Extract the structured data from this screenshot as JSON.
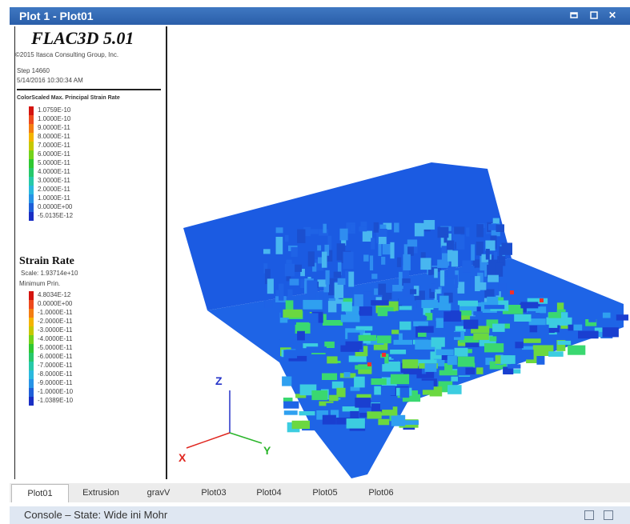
{
  "window": {
    "title": "Plot 1 - Plot01",
    "icons": [
      "restore-icon",
      "maximize-icon",
      "close-icon"
    ],
    "close_glyph": "✕"
  },
  "legend": {
    "brand": "FLAC3D 5.01",
    "copyright": "©2015 Itasca Consulting Group, Inc.",
    "step": "Step 14660",
    "datetime": "5/14/2016 10:30:34 AM",
    "max_header": "ColorScaled Max. Principal Strain Rate",
    "max_entries": [
      "1.0759E-10",
      "1.0000E-10",
      "9.0000E-11",
      "8.0000E-11",
      "7.0000E-11",
      "6.0000E-11",
      "5.0000E-11",
      "4.0000E-11",
      "3.0000E-11",
      "2.0000E-11",
      "1.0000E-11",
      "0.0000E+00",
      "-5.0135E-12"
    ],
    "max_colors": [
      "#d4140f",
      "#ee4a1d",
      "#f47d12",
      "#f4b400",
      "#c6c800",
      "#73d21b",
      "#2fc832",
      "#26c86b",
      "#27c9a8",
      "#2ab8de",
      "#2693e6",
      "#1f5fd8",
      "#1a2fc4"
    ],
    "strain_title": "Strain Rate",
    "scale": "Scale: 1.93714e+10",
    "min_header": "Minimum Prin.",
    "min_entries": [
      "4.8034E-12",
      "0.0000E+00",
      "-1.0000E-11",
      "-2.0000E-11",
      "-3.0000E-11",
      "-4.0000E-11",
      "-5.0000E-11",
      "-6.0000E-11",
      "-7.0000E-11",
      "-8.0000E-11",
      "-9.0000E-11",
      "-1.0000E-10",
      "-1.0389E-10"
    ],
    "min_colors": [
      "#d4140f",
      "#ee4a1d",
      "#f47d12",
      "#f4b400",
      "#c6c800",
      "#73d21b",
      "#2fc832",
      "#26c86b",
      "#27c9a8",
      "#2ab8de",
      "#2693e6",
      "#1f5fd8",
      "#1a2fc4"
    ]
  },
  "axes": {
    "x": "X",
    "y": "Y",
    "z": "Z",
    "x_color": "#e0261f",
    "y_color": "#2bb52b",
    "z_color": "#2533c9"
  },
  "tabs": [
    "Plot01",
    "Extrusion",
    "gravV",
    "Plot03",
    "Plot04",
    "Plot05",
    "Plot06"
  ],
  "console": {
    "title": "Console – State: Wide ini Mohr",
    "icons": [
      "console-restore-icon",
      "console-maximize-icon"
    ]
  }
}
